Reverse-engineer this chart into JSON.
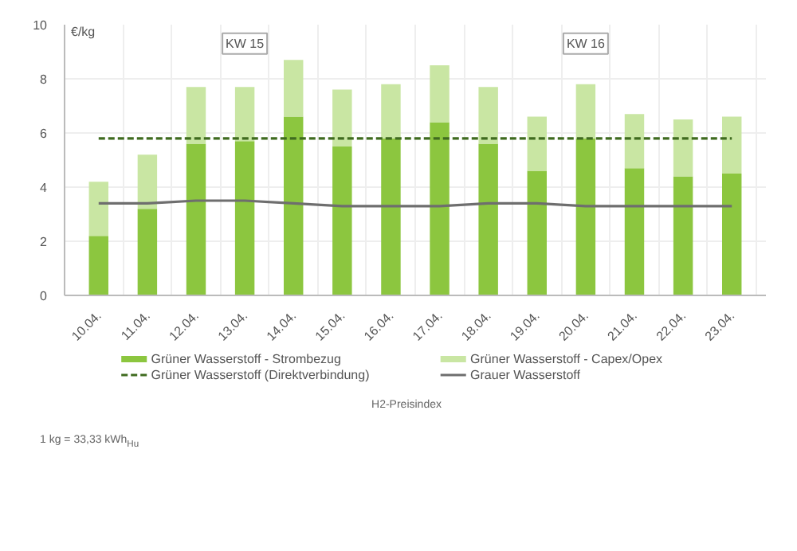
{
  "chart_data": {
    "type": "bar",
    "stacked": true,
    "ylabel": "€/kg",
    "categories": [
      "10.04.",
      "11.04.",
      "12.04.",
      "13.04.",
      "14.04.",
      "15.04.",
      "16.04.",
      "17.04.",
      "18.04.",
      "19.04.",
      "20.04.",
      "21.04.",
      "22.04.",
      "23.04."
    ],
    "series": [
      {
        "name": "Grüner Wasserstoff - Strombezug",
        "color": "#8cc63f",
        "values": [
          2.2,
          3.2,
          5.6,
          5.7,
          6.6,
          5.5,
          5.8,
          6.4,
          5.6,
          4.6,
          5.8,
          4.7,
          4.4,
          4.5
        ]
      },
      {
        "name": "Grüner Wasserstoff - Capex/Opex",
        "color": "#c9e6a3",
        "values": [
          2.0,
          2.0,
          2.1,
          2.0,
          2.1,
          2.1,
          2.0,
          2.1,
          2.1,
          2.0,
          2.0,
          2.0,
          2.1,
          2.1
        ]
      },
      {
        "name": "Grüner Wasserstoff (Direktverbindung)",
        "type": "line",
        "line_style": "dashed",
        "color": "#3f6b1f",
        "values": [
          5.8,
          5.8,
          5.8,
          5.8,
          5.8,
          5.8,
          5.8,
          5.8,
          5.8,
          5.8,
          5.8,
          5.8,
          5.8,
          5.8
        ]
      },
      {
        "name": "Grauer Wasserstoff",
        "type": "line",
        "line_style": "solid",
        "color": "#6e6e6e",
        "values": [
          3.4,
          3.4,
          3.5,
          3.5,
          3.4,
          3.3,
          3.3,
          3.3,
          3.4,
          3.4,
          3.3,
          3.3,
          3.3,
          3.3
        ]
      }
    ],
    "ylim": [
      0,
      10
    ],
    "yticks": [
      0,
      2,
      4,
      6,
      8,
      10
    ],
    "grid": true,
    "legend": "bottom",
    "annotations": [
      {
        "text": "KW 15",
        "x": "13.04.",
        "y": 9.3
      },
      {
        "text": "KW 16",
        "x": "20.04.",
        "y": 9.3
      },
      "H2-Preisindex",
      "1 kg = 33,33 kWh$_{Hu}$"
    ]
  }
}
